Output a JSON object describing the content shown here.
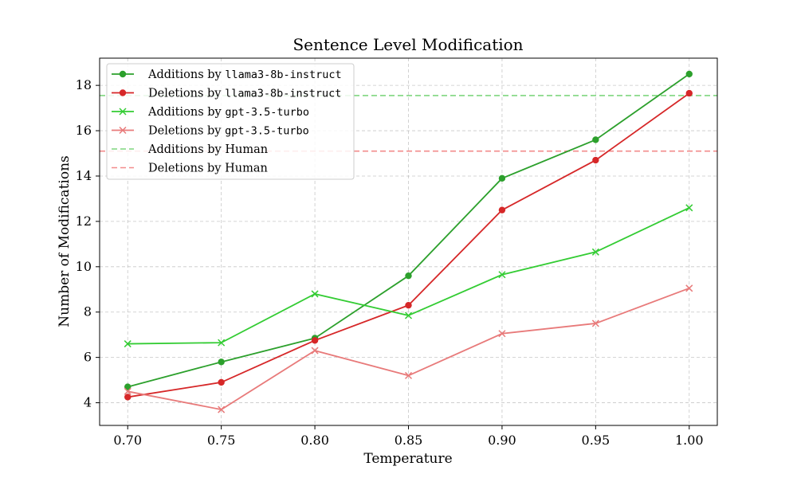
{
  "chart_data": {
    "type": "line",
    "title": "Sentence Level Modification",
    "xlabel": "Temperature",
    "ylabel": "Number of Modifications",
    "x": [
      0.7,
      0.75,
      0.8,
      0.85,
      0.9,
      0.95,
      1.0
    ],
    "x_tick_labels": [
      "0.70",
      "0.75",
      "0.80",
      "0.85",
      "0.90",
      "0.95",
      "1.00"
    ],
    "y_ticks": [
      4,
      6,
      8,
      10,
      12,
      14,
      16,
      18
    ],
    "xlim": [
      0.685,
      1.015
    ],
    "ylim": [
      3.0,
      19.2
    ],
    "grid": true,
    "legend_position": "top-left",
    "series": [
      {
        "name_prefix": "Additions by ",
        "name_model": "llama3-8b-instruct",
        "color": "#2ca02c",
        "marker": "circle",
        "linestyle": "solid",
        "values": [
          4.7,
          5.8,
          6.85,
          9.6,
          13.9,
          15.6,
          18.5
        ]
      },
      {
        "name_prefix": "Deletions by ",
        "name_model": "llama3-8b-instruct",
        "color": "#d62728",
        "marker": "circle",
        "linestyle": "solid",
        "values": [
          4.25,
          4.9,
          6.75,
          8.3,
          12.5,
          14.7,
          17.65
        ]
      },
      {
        "name_prefix": "Additions by ",
        "name_model": "gpt-3.5-turbo",
        "color": "#33cc33",
        "marker": "x",
        "linestyle": "solid",
        "values": [
          6.6,
          6.65,
          8.8,
          7.85,
          9.65,
          10.65,
          12.6
        ]
      },
      {
        "name_prefix": "Deletions by ",
        "name_model": "gpt-3.5-turbo",
        "color": "#e87a7a",
        "marker": "x",
        "linestyle": "solid",
        "values": [
          4.5,
          3.7,
          6.3,
          5.2,
          7.05,
          7.5,
          9.05
        ]
      }
    ],
    "hlines": [
      {
        "name": "Additions by Human",
        "value": 17.55,
        "color": "#7fd67f",
        "linestyle": "dashed"
      },
      {
        "name": "Deletions by Human",
        "value": 15.1,
        "color": "#f28b8b",
        "linestyle": "dashed"
      }
    ]
  }
}
